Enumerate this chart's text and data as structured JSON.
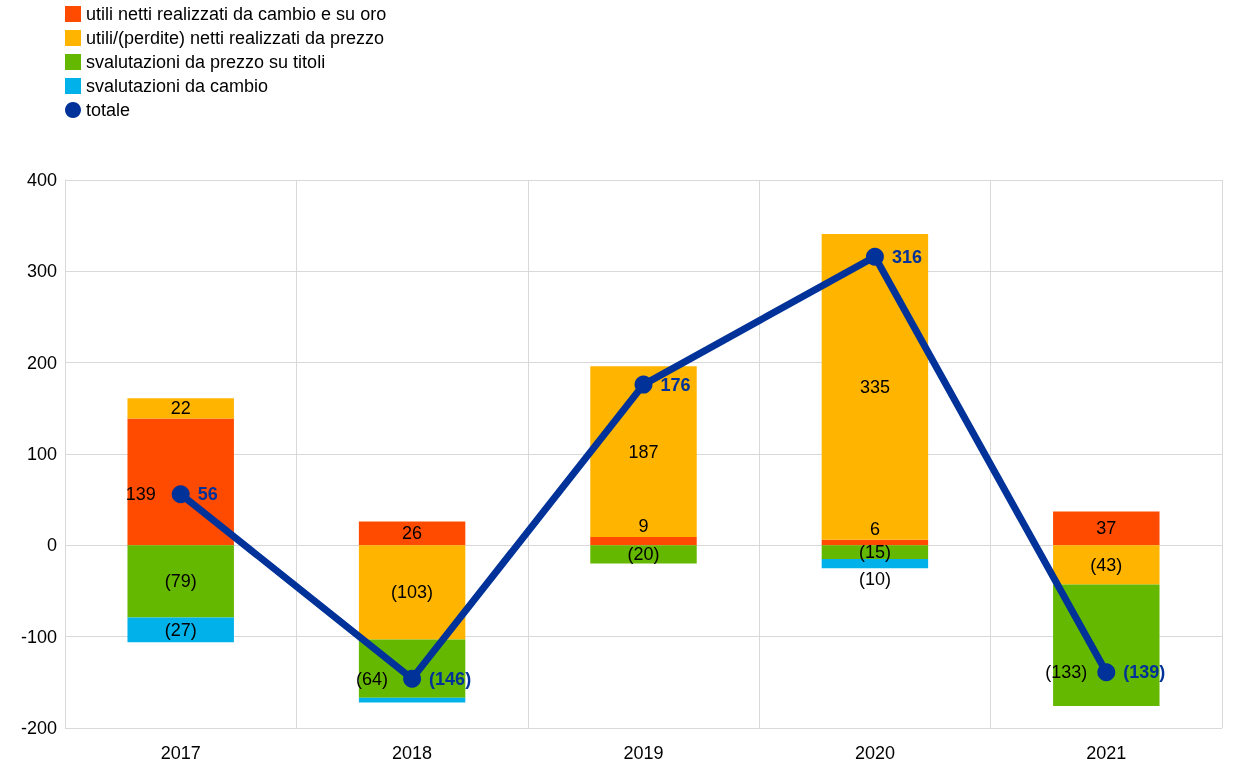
{
  "chart_data": {
    "type": "bar",
    "stacked": true,
    "categories": [
      "2017",
      "2018",
      "2019",
      "2020",
      "2021"
    ],
    "series": [
      {
        "name": "utili netti realizzati da cambio e su oro",
        "color": "#ff4b00",
        "values": [
          139,
          26,
          9,
          6,
          37
        ],
        "value_labels": [
          "139",
          "26",
          "9",
          "6",
          "37"
        ]
      },
      {
        "name": "utili/(perdite) netti realizzati da prezzo",
        "color": "#ffb400",
        "values": [
          22,
          -103,
          187,
          335,
          -43
        ],
        "value_labels": [
          "22",
          "(103)",
          "187",
          "335",
          "(43)"
        ]
      },
      {
        "name": "svalutazioni da prezzo su titoli",
        "color": "#65b800",
        "values": [
          -79,
          -64,
          -20,
          -15,
          -133
        ],
        "value_labels": [
          "(79)",
          "(64)",
          "(20)",
          "(15)",
          "(133)"
        ]
      },
      {
        "name": "svalutazioni da cambio",
        "color": "#00b1ea",
        "values": [
          -27,
          -5,
          null,
          -10,
          null
        ],
        "value_labels": [
          "(27)",
          null,
          null,
          "(10)",
          null
        ]
      },
      {
        "name": "totale",
        "type": "line",
        "color": "#003299",
        "values": [
          56,
          -146,
          176,
          316,
          -139
        ],
        "value_labels": [
          "56",
          "(146)",
          "176",
          "316",
          "(139)"
        ]
      }
    ],
    "ylim": [
      -200,
      400
    ],
    "yticks": [
      -200,
      -100,
      0,
      100,
      200,
      300,
      400
    ],
    "grid": true,
    "legend": "top left",
    "marker": "circle"
  }
}
